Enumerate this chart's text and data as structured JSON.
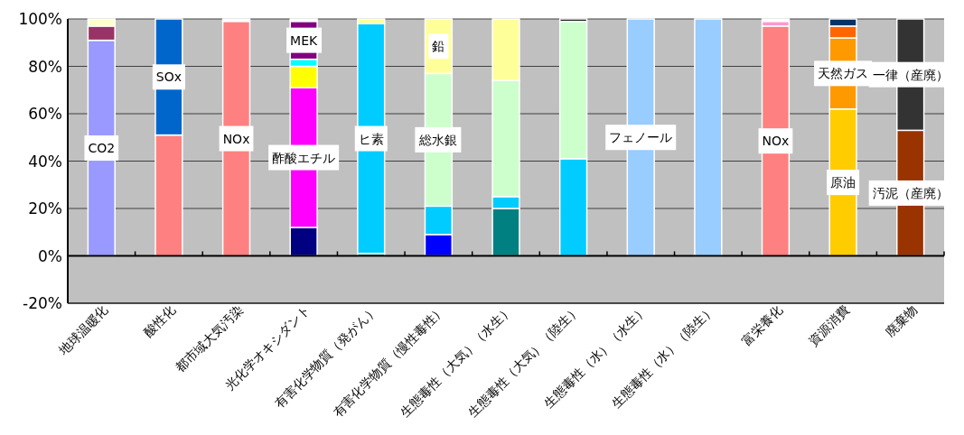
{
  "chart_data": {
    "type": "bar",
    "stacked": true,
    "categories": [
      "地球温暖化",
      "酸性化",
      "都市域大気汚染",
      "光化学オキシダント",
      "有害化学物質（発がん）",
      "有害化学物質（慢性毒性）",
      "生態毒性（大気）（水生）",
      "生態毒性（大気）（陸生）",
      "生態毒性（水）（水生）",
      "生態毒性（水）（陸生）",
      "富栄養化",
      "資源消費",
      "廃棄物"
    ],
    "series": [
      {
        "values": [
          91,
          51,
          99,
          12,
          1,
          9,
          20,
          41,
          100,
          100,
          97,
          62,
          53
        ],
        "colors": [
          "#9999ff",
          "#ff8080",
          "#ff8080",
          "#000080",
          "#008080",
          "#0000ff",
          "#008080",
          "#00ccff",
          "#99ccff",
          "#99ccff",
          "#ff8080",
          "#ffcc00",
          "#993300"
        ],
        "value_labels": [
          "CO2",
          null,
          "NOx",
          null,
          null,
          null,
          null,
          null,
          "フェノール",
          null,
          "NOx",
          "原油",
          "汚泥（産廃）"
        ]
      },
      {
        "values": [
          6,
          49,
          1,
          59,
          97,
          12,
          5,
          58,
          null,
          null,
          2,
          30,
          47
        ],
        "colors": [
          "#993366",
          "#0066cc",
          "#ffffff",
          "#ff00ff",
          "#00ccff",
          "#00ccff",
          "#00ccff",
          "#ccffcc",
          null,
          null,
          "#ff99cc",
          "#ff9900",
          "#333333"
        ],
        "value_labels": [
          null,
          "SOx",
          null,
          "酢酸エチル",
          "ヒ素",
          null,
          null,
          null,
          null,
          null,
          null,
          "天然ガス",
          "一律（産廃）"
        ]
      },
      {
        "values": [
          3,
          null,
          null,
          9,
          2,
          56,
          49,
          1,
          null,
          null,
          1,
          5,
          null
        ],
        "colors": [
          "#ffffcc",
          null,
          null,
          "#ffff00",
          "#ffff99",
          "#ccffcc",
          "#ccffcc",
          "#000000",
          null,
          null,
          "#ffffff",
          "#ff6600",
          null
        ],
        "value_labels": [
          null,
          null,
          null,
          null,
          null,
          "総水銀",
          null,
          null,
          null,
          null,
          null,
          null,
          null
        ]
      },
      {
        "values": [
          null,
          null,
          null,
          3,
          null,
          23,
          26,
          null,
          null,
          null,
          null,
          3,
          null
        ],
        "colors": [
          null,
          null,
          null,
          "#00ffff",
          null,
          "#ffff99",
          "#ffff99",
          null,
          null,
          null,
          null,
          "#003366",
          null
        ],
        "value_labels": [
          null,
          null,
          null,
          null,
          null,
          "鉛",
          null,
          null,
          null,
          null,
          null,
          null,
          null
        ]
      },
      {
        "values": [
          null,
          null,
          null,
          16,
          null,
          null,
          null,
          null,
          null,
          null,
          null,
          null,
          null
        ],
        "colors": [
          null,
          null,
          null,
          "#800080",
          null,
          null,
          null,
          null,
          null,
          null,
          null,
          null,
          null
        ],
        "value_labels": [
          null,
          null,
          null,
          "MEK",
          null,
          null,
          null,
          null,
          null,
          null,
          null,
          null,
          null
        ]
      },
      {
        "values": [
          null,
          null,
          null,
          1,
          null,
          null,
          null,
          null,
          null,
          null,
          null,
          null,
          null
        ],
        "colors": [
          null,
          null,
          null,
          "#ffffff",
          null,
          null,
          null,
          null,
          null,
          null,
          null,
          null,
          null
        ]
      }
    ],
    "ylim": [
      -20,
      100
    ],
    "yticks": [
      {
        "value": -20,
        "label": "-20%"
      },
      {
        "value": 0,
        "label": "0%"
      },
      {
        "value": 20,
        "label": "20%"
      },
      {
        "value": 40,
        "label": "40%"
      },
      {
        "value": 60,
        "label": "60%"
      },
      {
        "value": 80,
        "label": "80%"
      },
      {
        "value": 100,
        "label": "100%"
      }
    ],
    "grid": "y"
  }
}
